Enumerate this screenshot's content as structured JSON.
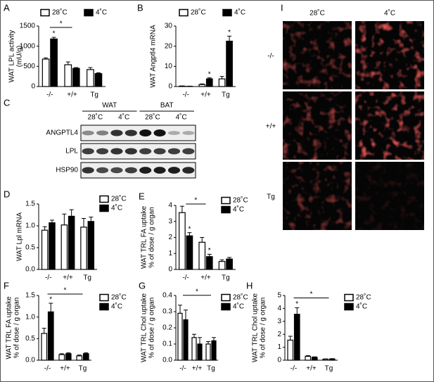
{
  "chart_data": [
    {
      "panel": "A",
      "type": "bar",
      "ylabel": [
        "WAT LPL activity",
        "(mU/g)"
      ],
      "categories": [
        "-/-",
        "+/+",
        "Tg"
      ],
      "series": [
        {
          "name": "28˚C",
          "color": "#ffffff",
          "values": [
            680,
            540,
            420
          ],
          "errors": [
            30,
            70,
            50
          ]
        },
        {
          "name": "4˚C",
          "color": "#000000",
          "values": [
            1180,
            450,
            320
          ],
          "errors": [
            40,
            20,
            20
          ]
        }
      ],
      "ylim": [
        0,
        1500
      ],
      "yticks": [
        0,
        500,
        1000,
        1500
      ],
      "legend": "top",
      "significance": [
        {
          "text": "*",
          "series": "4˚C",
          "category": "-/-"
        }
      ],
      "brackets": [
        {
          "text": "*",
          "from": "-/-",
          "to": "+/+"
        }
      ]
    },
    {
      "panel": "B",
      "type": "bar",
      "ylabel": [
        "WAT Angptl4 mRNA"
      ],
      "categories": [
        "-/-",
        "+/+",
        "Tg"
      ],
      "series": [
        {
          "name": "28˚C",
          "color": "#ffffff",
          "values": [
            0.2,
            1.0,
            3.8
          ],
          "errors": [
            0.1,
            0.3,
            1.2
          ]
        },
        {
          "name": "4˚C",
          "color": "#000000",
          "values": [
            0.1,
            3.8,
            22.5
          ],
          "errors": [
            0.1,
            0.5,
            2.5
          ]
        }
      ],
      "ylim": [
        0,
        30
      ],
      "yticks": [
        0,
        10,
        20,
        30
      ],
      "legend": "top",
      "significance": [
        {
          "text": "*",
          "series": "4˚C",
          "category": "+/+"
        },
        {
          "text": "*",
          "series": "4˚C",
          "category": "Tg"
        }
      ],
      "brackets": []
    },
    {
      "panel": "D",
      "type": "bar",
      "ylabel": [
        "WAT Lpl mRNA"
      ],
      "categories": [
        "-/-",
        "+/+",
        "Tg"
      ],
      "series": [
        {
          "name": "28˚C",
          "color": "#ffffff",
          "values": [
            0.9,
            1.02,
            0.97
          ],
          "errors": [
            0.08,
            0.25,
            0.2
          ]
        },
        {
          "name": "4˚C",
          "color": "#000000",
          "values": [
            1.07,
            1.22,
            1.1
          ],
          "errors": [
            0.06,
            0.15,
            0.1
          ]
        }
      ],
      "ylim": [
        0,
        1.5
      ],
      "yticks": [
        {
          "value": 0,
          "label": "0.0"
        },
        {
          "value": 0.5,
          "label": "0.5"
        },
        {
          "value": 1,
          "label": "1.0"
        },
        {
          "value": 1.5,
          "label": "1.5"
        }
      ],
      "legend": "upper right",
      "significance": [],
      "brackets": []
    },
    {
      "panel": "E",
      "type": "bar",
      "ylabel": [
        "WAT TRL FA uptake",
        "% of dose / g organ"
      ],
      "categories": [
        "-/-",
        "+/+",
        "Tg"
      ],
      "series": [
        {
          "name": "28˚C",
          "color": "#ffffff",
          "values": [
            3.55,
            1.7,
            0.5
          ],
          "errors": [
            0.4,
            0.3,
            0.1
          ]
        },
        {
          "name": "4˚C",
          "color": "#000000",
          "values": [
            2.1,
            0.8,
            0.65
          ],
          "errors": [
            0.2,
            0.15,
            0.1
          ]
        }
      ],
      "ylim": [
        0,
        4
      ],
      "yticks": [
        0,
        1,
        2,
        3,
        4
      ],
      "legend": "upper right",
      "significance": [
        {
          "text": "*",
          "series": "4˚C",
          "category": "-/-"
        },
        {
          "text": "*",
          "series": "4˚C",
          "category": "+/+"
        }
      ],
      "brackets": [
        {
          "text": "*",
          "from": "-/-",
          "to": "+/+"
        }
      ]
    },
    {
      "panel": "F",
      "type": "bar",
      "ylabel": [
        "WAT TRL FA uptake",
        "% of dose / g organ"
      ],
      "categories": [
        "-/-",
        "+/+",
        "Tg"
      ],
      "series": [
        {
          "name": "28˚C",
          "color": "#ffffff",
          "values": [
            0.62,
            0.13,
            0.1
          ],
          "errors": [
            0.12,
            0.02,
            0.02
          ]
        },
        {
          "name": "4˚C",
          "color": "#000000",
          "values": [
            1.12,
            0.15,
            0.15
          ],
          "errors": [
            0.2,
            0.02,
            0.02
          ]
        }
      ],
      "ylim": [
        0,
        1.5
      ],
      "yticks": [
        {
          "value": 0,
          "label": "0.0"
        },
        {
          "value": 0.5,
          "label": "0.5"
        },
        {
          "value": 1,
          "label": "1.0"
        },
        {
          "value": 1.5,
          "label": "1.5"
        }
      ],
      "legend": "upper right",
      "significance": [
        {
          "text": "*",
          "series": "4˚C",
          "category": "-/-"
        }
      ],
      "brackets": [
        {
          "text": "*",
          "from": "-/-",
          "to": "Tg"
        }
      ]
    },
    {
      "panel": "G",
      "type": "bar",
      "ylabel": [
        "WAT TRL Chol uptake",
        "% of dose / g organ"
      ],
      "categories": [
        "-/-",
        "+/+",
        "Tg"
      ],
      "series": [
        {
          "name": "28˚C",
          "color": "#ffffff",
          "values": [
            0.29,
            0.14,
            0.1
          ],
          "errors": [
            0.05,
            0.02,
            0.015
          ]
        },
        {
          "name": "4˚C",
          "color": "#000000",
          "values": [
            0.25,
            0.1,
            0.12
          ],
          "errors": [
            0.06,
            0.04,
            0.02
          ]
        }
      ],
      "ylim": [
        0,
        0.4
      ],
      "yticks": [
        {
          "value": 0,
          "label": "0.0"
        },
        0.1,
        0.2,
        0.3,
        0.4
      ],
      "legend": "upper right",
      "significance": [],
      "brackets": [
        {
          "text": "*",
          "from": "-/-",
          "to": "Tg"
        }
      ]
    },
    {
      "panel": "H",
      "type": "bar",
      "ylabel": [
        "WAT TRL Chol uptake",
        "% of dose / g organ"
      ],
      "categories": [
        "-/-",
        "+/+",
        "Tg"
      ],
      "series": [
        {
          "name": "28˚C",
          "color": "#ffffff",
          "values": [
            1.55,
            0.3,
            0.08
          ],
          "errors": [
            0.3,
            0.05,
            0.02
          ]
        },
        {
          "name": "4˚C",
          "color": "#000000",
          "values": [
            3.55,
            0.22,
            0.1
          ],
          "errors": [
            0.5,
            0.04,
            0.02
          ]
        }
      ],
      "ylim": [
        0,
        5
      ],
      "yticks": [
        0,
        1,
        2,
        3,
        4,
        5
      ],
      "legend": "upper right",
      "significance": [
        {
          "text": "*",
          "series": "4˚C",
          "category": "-/-"
        }
      ],
      "brackets": [
        {
          "text": "*",
          "from": "-/-",
          "to": "Tg"
        }
      ]
    }
  ],
  "blot": {
    "panel": "C",
    "tissues": [
      "WAT",
      "BAT"
    ],
    "conditions": [
      "28˚C",
      "4˚C",
      "28˚C",
      "4˚C"
    ],
    "proteins": [
      "ANGPTL4",
      "LPL",
      "HSP90"
    ]
  },
  "images": {
    "panel": "I",
    "columns": [
      "28˚C",
      "4˚C"
    ],
    "rows": [
      "-/-",
      "+/+",
      "Tg"
    ]
  }
}
